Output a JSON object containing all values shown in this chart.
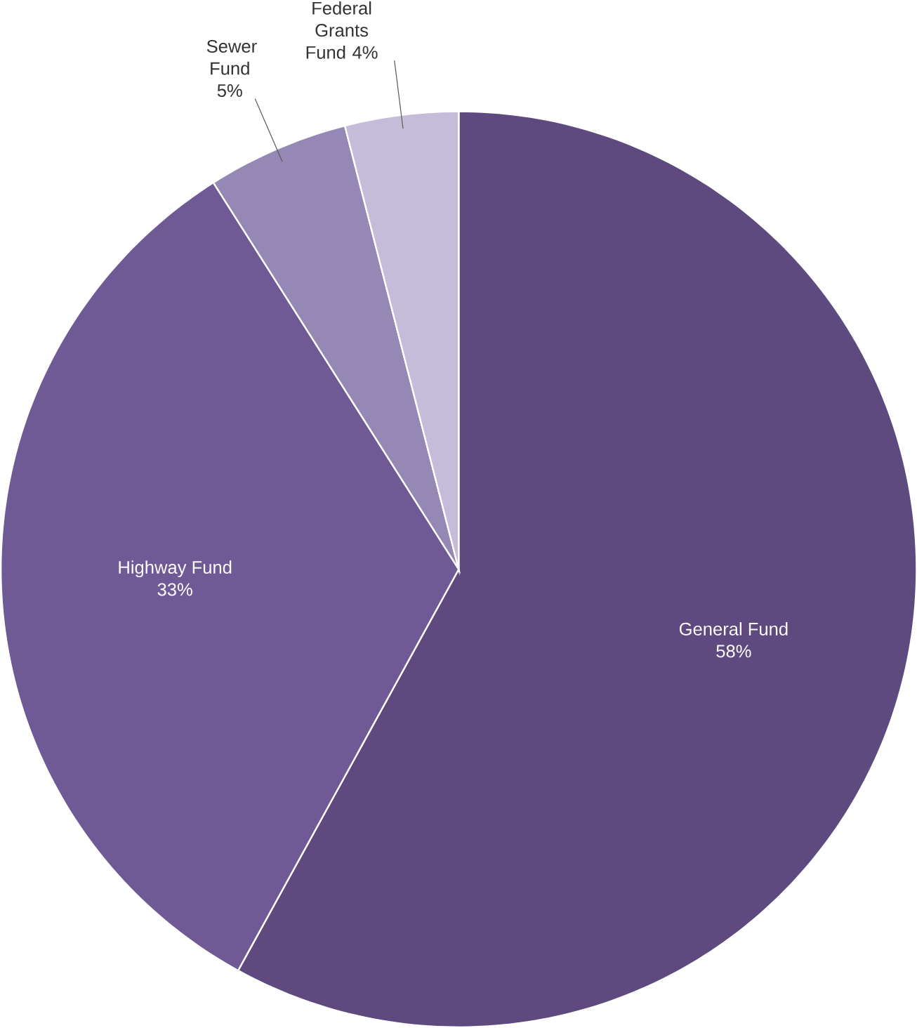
{
  "chart_data": {
    "type": "pie",
    "categories": [
      "General Fund",
      "Highway Fund",
      "Sewer Fund",
      "Federal Grants Fund"
    ],
    "values": [
      58,
      33,
      5,
      4
    ],
    "value_labels": [
      "58%",
      "33%",
      "5%",
      "4%"
    ],
    "colors": [
      "#5e4a7e",
      "#6f5a96",
      "#9688b5",
      "#c4bcd8"
    ]
  }
}
